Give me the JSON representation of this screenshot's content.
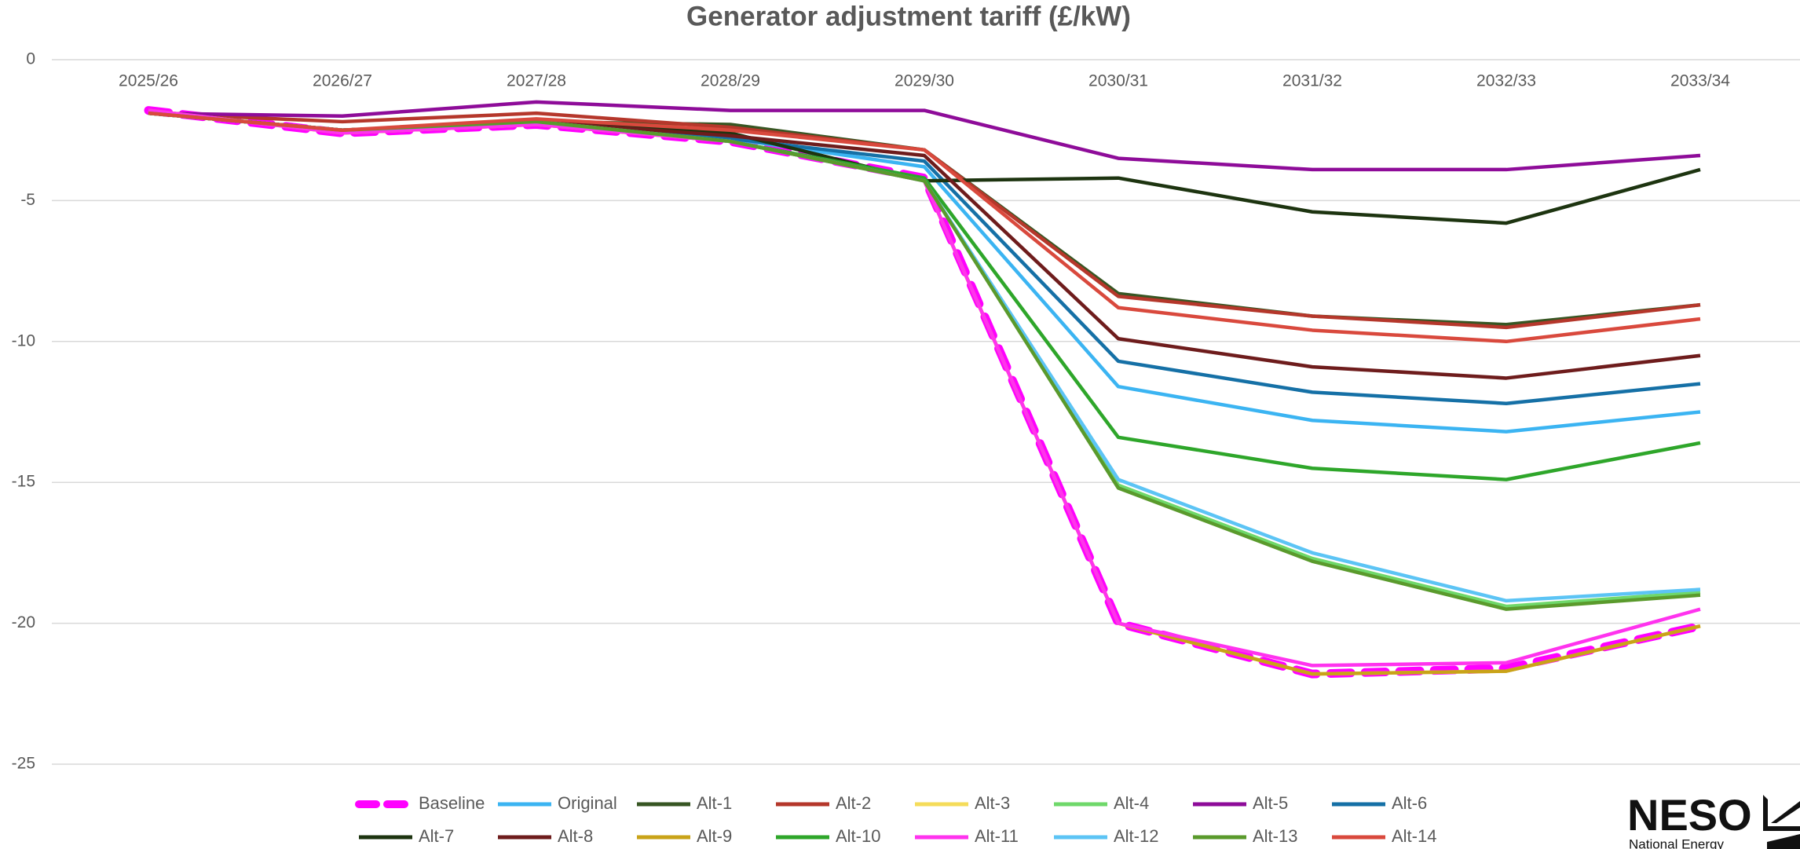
{
  "chart_data": {
    "type": "line",
    "title": "Generator adjustment tariff (£/kW)",
    "categories": [
      "2025/26",
      "2026/27",
      "2027/28",
      "2028/29",
      "2029/30",
      "2030/31",
      "2031/32",
      "2032/33",
      "2033/34"
    ],
    "ylim": [
      -25,
      0
    ],
    "yticks": [
      0,
      -5,
      -10,
      -15,
      -20,
      -25
    ],
    "grid": true,
    "series": [
      {
        "name": "Baseline",
        "color": "#ff00ff",
        "dashed": true,
        "values": [
          -1.8,
          -2.6,
          -2.3,
          -2.9,
          -4.2,
          -20.0,
          -21.8,
          -21.6,
          -20.1
        ]
      },
      {
        "name": "Original",
        "color": "#3bb4f2",
        "values": [
          -1.9,
          -2.5,
          -2.2,
          -2.8,
          -3.8,
          -11.6,
          -12.8,
          -13.2,
          -12.5
        ]
      },
      {
        "name": "Alt-1",
        "color": "#375623",
        "values": [
          -1.9,
          -2.5,
          -2.2,
          -2.3,
          -3.2,
          -8.3,
          -9.1,
          -9.4,
          -8.7
        ]
      },
      {
        "name": "Alt-2",
        "color": "#b5372b",
        "values": [
          -1.9,
          -2.2,
          -1.9,
          -2.4,
          -3.2,
          -8.4,
          -9.1,
          -9.5,
          -8.7
        ]
      },
      {
        "name": "Alt-3",
        "color": "#f5dc5a",
        "values": [
          -1.8,
          -2.6,
          -2.3,
          -2.9,
          -4.3,
          -20.0,
          -21.8,
          -21.7,
          -20.1
        ]
      },
      {
        "name": "Alt-4",
        "color": "#6fd86a",
        "values": [
          -1.9,
          -2.5,
          -2.2,
          -2.9,
          -4.3,
          -15.1,
          -17.7,
          -19.4,
          -18.9
        ]
      },
      {
        "name": "Alt-5",
        "color": "#8e0c99",
        "values": [
          -1.9,
          -2.0,
          -1.5,
          -1.8,
          -1.8,
          -3.5,
          -3.9,
          -3.9,
          -3.4
        ]
      },
      {
        "name": "Alt-6",
        "color": "#1570a6",
        "values": [
          -1.9,
          -2.5,
          -2.2,
          -2.8,
          -3.6,
          -10.7,
          -11.8,
          -12.2,
          -11.5
        ]
      },
      {
        "name": "Alt-7",
        "color": "#1d3410",
        "values": [
          -1.9,
          -2.5,
          -2.2,
          -2.6,
          -4.3,
          -4.2,
          -5.4,
          -5.8,
          -3.9
        ]
      },
      {
        "name": "Alt-8",
        "color": "#6e1c1c",
        "values": [
          -1.9,
          -2.5,
          -2.2,
          -2.7,
          -3.4,
          -9.9,
          -10.9,
          -11.3,
          -10.5
        ]
      },
      {
        "name": "Alt-9",
        "color": "#c9a318",
        "values": [
          -1.8,
          -2.6,
          -2.3,
          -2.9,
          -4.3,
          -20.0,
          -21.8,
          -21.7,
          -20.1
        ]
      },
      {
        "name": "Alt-10",
        "color": "#2ea62a",
        "values": [
          -1.9,
          -2.5,
          -2.2,
          -2.9,
          -4.2,
          -13.4,
          -14.5,
          -14.9,
          -13.6
        ]
      },
      {
        "name": "Alt-11",
        "color": "#ff33ee",
        "values": [
          -1.8,
          -2.6,
          -2.3,
          -2.9,
          -4.3,
          -20.0,
          -21.5,
          -21.4,
          -19.5
        ]
      },
      {
        "name": "Alt-12",
        "color": "#5cc4f5",
        "values": [
          -1.9,
          -2.5,
          -2.2,
          -2.9,
          -4.3,
          -14.9,
          -17.5,
          -19.2,
          -18.8
        ]
      },
      {
        "name": "Alt-13",
        "color": "#5a9a2c",
        "values": [
          -1.9,
          -2.5,
          -2.2,
          -2.9,
          -4.3,
          -15.2,
          -17.8,
          -19.5,
          -19.0
        ]
      },
      {
        "name": "Alt-14",
        "color": "#d9493d",
        "values": [
          -1.9,
          -2.5,
          -2.1,
          -2.5,
          -3.2,
          -8.8,
          -9.6,
          -10.0,
          -9.2
        ]
      }
    ]
  },
  "logo": {
    "name": "NESO",
    "tagline": "National Energy"
  }
}
